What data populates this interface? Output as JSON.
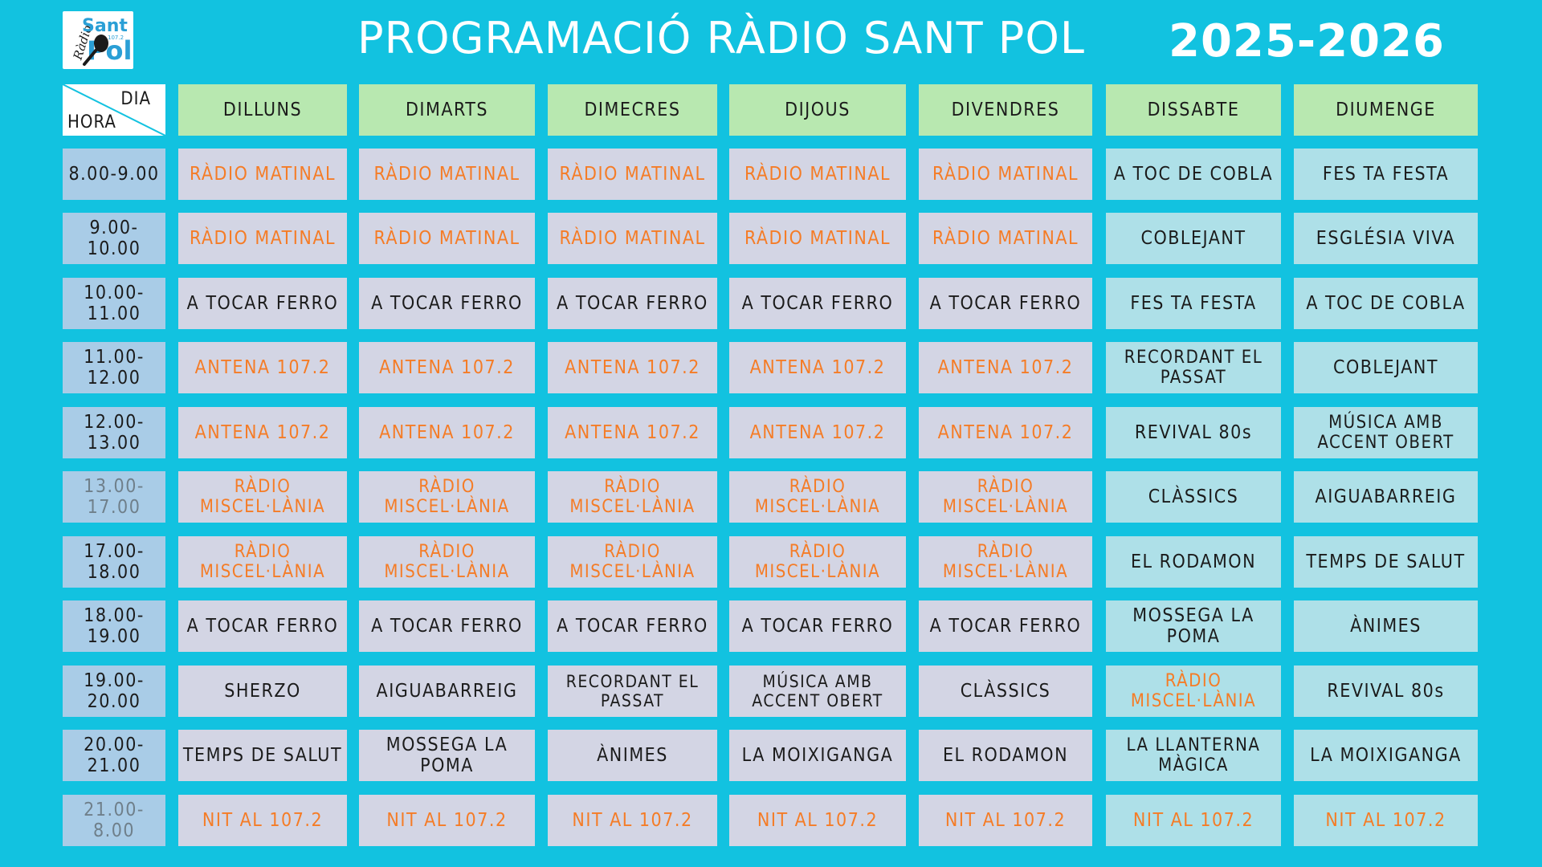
{
  "logo": {
    "top_text": "Sant",
    "bottom_text": "Pol",
    "side_text": "Ràdio",
    "freq": "107.2"
  },
  "title": "PROGRAMACIÓ RÀDIO SANT POL",
  "year": "2025-2026",
  "corner": {
    "day_label": "DIA",
    "hour_label": "HORA"
  },
  "days": [
    "DILLUNS",
    "DIMARTS",
    "DIMECRES",
    "DIJOUS",
    "DIVENDRES",
    "DISSABTE",
    "DIUMENGE"
  ],
  "hours": [
    "8.00-9.00",
    "9.00-10.00",
    "10.00-11.00",
    "11.00-12.00",
    "12.00-13.00",
    "13.00-17.00",
    "17.00-18.00",
    "18.00-19.00",
    "19.00-20.00",
    "20.00-21.00",
    "21.00-8.00"
  ],
  "schedule": [
    [
      "RÀDIO MATINAL",
      "RÀDIO MATINAL",
      "RÀDIO MATINAL",
      "RÀDIO MATINAL",
      "RÀDIO MATINAL",
      "A TOC DE COBLA",
      "FES TA FESTA"
    ],
    [
      "RÀDIO MATINAL",
      "RÀDIO MATINAL",
      "RÀDIO MATINAL",
      "RÀDIO MATINAL",
      "RÀDIO MATINAL",
      "COBLEJANT",
      "ESGLÉSIA VIVA"
    ],
    [
      "A TOCAR FERRO",
      "A TOCAR FERRO",
      "A TOCAR FERRO",
      "A TOCAR FERRO",
      "A TOCAR FERRO",
      "FES TA FESTA",
      "A TOC DE COBLA"
    ],
    [
      "ANTENA 107.2",
      "ANTENA 107.2",
      "ANTENA 107.2",
      "ANTENA 107.2",
      "ANTENA 107.2",
      "RECORDANT EL PASSAT",
      "COBLEJANT"
    ],
    [
      "ANTENA 107.2",
      "ANTENA 107.2",
      "ANTENA 107.2",
      "ANTENA 107.2",
      "ANTENA 107.2",
      "REVIVAL 80s",
      "MÚSICA AMB ACCENT OBERT"
    ],
    [
      "RÀDIO MISCEL·LÀNIA",
      "RÀDIO MISCEL·LÀNIA",
      "RÀDIO MISCEL·LÀNIA",
      "RÀDIO MISCEL·LÀNIA",
      "RÀDIO MISCEL·LÀNIA",
      "CLÀSSICS",
      "AIGUABARREIG"
    ],
    [
      "RÀDIO MISCEL·LÀNIA",
      "RÀDIO MISCEL·LÀNIA",
      "RÀDIO MISCEL·LÀNIA",
      "RÀDIO MISCEL·LÀNIA",
      "RÀDIO MISCEL·LÀNIA",
      "EL RODAMON",
      "TEMPS DE SALUT"
    ],
    [
      "A TOCAR FERRO",
      "A TOCAR FERRO",
      "A TOCAR FERRO",
      "A TOCAR FERRO",
      "A TOCAR FERRO",
      "MOSSEGA LA POMA",
      "ÀNIMES"
    ],
    [
      "SHERZO",
      "AIGUABARREIG",
      "RECORDANT EL PASSAT",
      "MÚSICA AMB ACCENT OBERT",
      "CLÀSSICS",
      "RÀDIO MISCEL·LÀNIA",
      "REVIVAL 80s"
    ],
    [
      "TEMPS DE SALUT",
      "MOSSEGA LA POMA",
      "ÀNIMES",
      "LA MOIXIGANGA",
      "EL RODAMON",
      "LA LLANTERNA MÀGICA",
      "LA MOIXIGANGA"
    ],
    [
      "NIT AL 107.2",
      "NIT AL 107.2",
      "NIT AL 107.2",
      "NIT AL 107.2",
      "NIT AL 107.2",
      "NIT AL 107.2",
      "NIT AL 107.2"
    ]
  ],
  "highlight_programs": [
    "RÀDIO MATINAL",
    "ANTENA 107.2",
    "RÀDIO MISCEL·LÀNIA",
    "NIT AL 107.2"
  ],
  "dim_hours": [
    "13.00-17.00",
    "21.00-8.00"
  ],
  "colors": {
    "background": "#12c2e0",
    "day_header": "#b8e8b0",
    "hour_cell": "#a9cce7",
    "weekday_cell": "#d3d5e4",
    "weekend_cell": "#aee0e8",
    "highlight_text": "#f57c26"
  }
}
